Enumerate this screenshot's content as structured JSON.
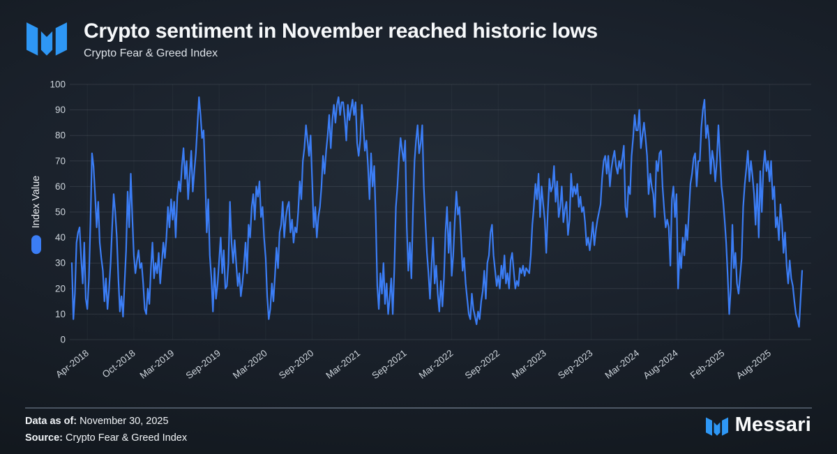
{
  "header": {
    "title": "Crypto sentiment in November reached historic lows",
    "subtitle": "Crypto Fear & Greed Index"
  },
  "footer": {
    "data_as_of_label": "Data as of:",
    "data_as_of_value": "November 30, 2025",
    "source_label": "Source:",
    "source_value": "Crypto Fear & Greed Index",
    "brand": "Messari"
  },
  "colors": {
    "accent_line": "#3b7df5",
    "logo_blue": "#2e97f5",
    "background": "#171d25",
    "tick_text": "#ced5dc",
    "grid_line": "#c9d1d9"
  },
  "chart_data": {
    "type": "line",
    "title": "Crypto sentiment in November reached historic lows",
    "subtitle": "Crypto Fear & Greed Index",
    "ylabel": "Index Value",
    "ylim": [
      0,
      100
    ],
    "y_ticks": [
      0,
      10,
      20,
      30,
      40,
      50,
      60,
      70,
      80,
      90,
      100
    ],
    "grid": "horizontal-strong, vertical-faint",
    "legend_position": "left-rotated",
    "x_ticks": [
      {
        "label": "Apr-2018",
        "month_index": 2
      },
      {
        "label": "Oct-2018",
        "month_index": 8
      },
      {
        "label": "Mar-2019",
        "month_index": 13
      },
      {
        "label": "Sep-2019",
        "month_index": 19
      },
      {
        "label": "Mar-2020",
        "month_index": 25
      },
      {
        "label": "Sep-2020",
        "month_index": 31
      },
      {
        "label": "Mar-2021",
        "month_index": 37
      },
      {
        "label": "Sep-2021",
        "month_index": 43
      },
      {
        "label": "Mar-2022",
        "month_index": 49
      },
      {
        "label": "Sep-2022",
        "month_index": 55
      },
      {
        "label": "Mar-2023",
        "month_index": 61
      },
      {
        "label": "Sep-2023",
        "month_index": 67
      },
      {
        "label": "Mar-2024",
        "month_index": 73
      },
      {
        "label": "Aug-2024",
        "month_index": 78
      },
      {
        "label": "Feb-2025",
        "month_index": 84
      },
      {
        "label": "Aug-2025",
        "month_index": 90
      }
    ],
    "points_per_month": 5,
    "series": [
      {
        "name": "Index Value",
        "color": "#3b7df5",
        "values": [
          30,
          8,
          18,
          38,
          42,
          44,
          32,
          22,
          38,
          16,
          12,
          24,
          46,
          73,
          68,
          57,
          44,
          54,
          38,
          32,
          27,
          15,
          24,
          12,
          20,
          30,
          44,
          57,
          50,
          40,
          24,
          11,
          17,
          9,
          22,
          35,
          58,
          44,
          65,
          48,
          33,
          26,
          31,
          35,
          28,
          30,
          22,
          12,
          10,
          20,
          14,
          28,
          38,
          24,
          30,
          26,
          34,
          22,
          30,
          38,
          32,
          40,
          52,
          44,
          55,
          47,
          54,
          40,
          56,
          62,
          58,
          68,
          75,
          63,
          70,
          55,
          64,
          74,
          58,
          66,
          73,
          84,
          95,
          88,
          79,
          82,
          64,
          42,
          55,
          33,
          24,
          11,
          28,
          16,
          22,
          31,
          40,
          26,
          35,
          20,
          21,
          30,
          54,
          38,
          30,
          39,
          30,
          21,
          26,
          17,
          22,
          29,
          38,
          26,
          45,
          40,
          52,
          57,
          47,
          60,
          56,
          62,
          48,
          52,
          40,
          32,
          17,
          8,
          12,
          22,
          15,
          25,
          36,
          28,
          42,
          45,
          54,
          40,
          48,
          52,
          54,
          42,
          47,
          38,
          44,
          42,
          50,
          62,
          55,
          70,
          75,
          84,
          78,
          72,
          80,
          62,
          44,
          52,
          40,
          48,
          52,
          60,
          72,
          65,
          74,
          80,
          88,
          75,
          86,
          92,
          85,
          92,
          95,
          88,
          93,
          93,
          87,
          78,
          92,
          86,
          90,
          94,
          88,
          93,
          77,
          72,
          78,
          92,
          84,
          74,
          78,
          68,
          55,
          73,
          60,
          68,
          48,
          21,
          12,
          26,
          18,
          30,
          14,
          22,
          10,
          16,
          24,
          10,
          28,
          52,
          60,
          71,
          79,
          74,
          70,
          78,
          44,
          27,
          38,
          24,
          50,
          70,
          78,
          84,
          73,
          77,
          84,
          60,
          47,
          34,
          26,
          16,
          29,
          40,
          22,
          29,
          18,
          11,
          23,
          13,
          24,
          42,
          52,
          34,
          46,
          25,
          33,
          47,
          58,
          49,
          52,
          40,
          27,
          32,
          22,
          16,
          10,
          8,
          18,
          12,
          9,
          6,
          11,
          8,
          15,
          19,
          27,
          16,
          30,
          33,
          42,
          45,
          33,
          27,
          21,
          25,
          20,
          29,
          24,
          33,
          22,
          26,
          20,
          31,
          34,
          27,
          20,
          23,
          21,
          28,
          26,
          29,
          25,
          28,
          27,
          26,
          33,
          45,
          52,
          61,
          55,
          65,
          48,
          60,
          53,
          47,
          34,
          50,
          63,
          58,
          60,
          68,
          54,
          62,
          48,
          52,
          60,
          46,
          51,
          54,
          41,
          47,
          65,
          56,
          60,
          57,
          61,
          52,
          56,
          50,
          52,
          46,
          37,
          40,
          35,
          40,
          46,
          37,
          43,
          47,
          50,
          53,
          63,
          70,
          72,
          65,
          72,
          60,
          67,
          71,
          74,
          68,
          65,
          70,
          67,
          71,
          76,
          52,
          48,
          60,
          57,
          72,
          79,
          88,
          82,
          82,
          90,
          75,
          80,
          85,
          79,
          72,
          57,
          65,
          60,
          57,
          48,
          70,
          66,
          73,
          74,
          60,
          51,
          44,
          47,
          44,
          29,
          55,
          60,
          48,
          57,
          20,
          34,
          28,
          40,
          33,
          45,
          39,
          50,
          61,
          65,
          71,
          73,
          60,
          70,
          70,
          83,
          90,
          94,
          79,
          84,
          78,
          65,
          74,
          70,
          62,
          70,
          84,
          72,
          60,
          55,
          47,
          38,
          25,
          10,
          20,
          45,
          28,
          34,
          22,
          18,
          25,
          32,
          52,
          61,
          67,
          74,
          62,
          70,
          64,
          57,
          45,
          61,
          40,
          66,
          50,
          67,
          74,
          66,
          70,
          62,
          70,
          55,
          60,
          44,
          48,
          39,
          53,
          46,
          34,
          42,
          29,
          22,
          31,
          24,
          21,
          15,
          10,
          8,
          5,
          16,
          27
        ]
      }
    ]
  }
}
